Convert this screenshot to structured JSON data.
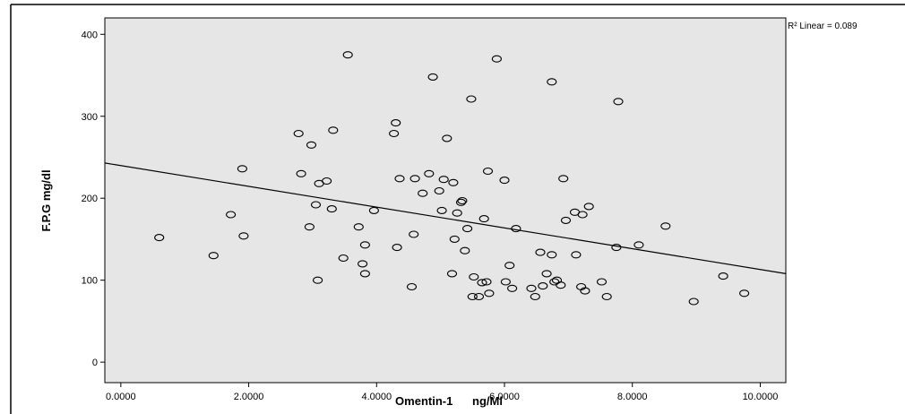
{
  "chart_data": {
    "type": "scatter",
    "xlabel": "Omentin-1      ng/Ml",
    "ylabel": "F.P.G mg/dl",
    "xlim": [
      -0.25,
      10.4
    ],
    "ylim": [
      -25,
      420
    ],
    "x_ticks": [
      "0.0000",
      "2.0000",
      "4.0000",
      "6.0000",
      "8.0000",
      "10.0000"
    ],
    "y_ticks": [
      "0",
      "100",
      "200",
      "300",
      "400"
    ],
    "x_tick_values": [
      0,
      2,
      4,
      6,
      8,
      10
    ],
    "y_tick_values": [
      0,
      100,
      200,
      300,
      400
    ],
    "annotation": "R² Linear = 0.089",
    "fit_line": {
      "x": [
        -0.25,
        10.4
      ],
      "y": [
        243,
        108
      ]
    },
    "background": "#e6e6e6",
    "grid": false,
    "points": [
      [
        0.6,
        152
      ],
      [
        1.45,
        130
      ],
      [
        1.72,
        180
      ],
      [
        1.9,
        236
      ],
      [
        1.92,
        154
      ],
      [
        2.78,
        279
      ],
      [
        2.82,
        230
      ],
      [
        2.95,
        165
      ],
      [
        2.98,
        265
      ],
      [
        3.05,
        192
      ],
      [
        3.08,
        100
      ],
      [
        3.1,
        218
      ],
      [
        3.22,
        221
      ],
      [
        3.3,
        187
      ],
      [
        3.32,
        283
      ],
      [
        3.55,
        375
      ],
      [
        3.48,
        127
      ],
      [
        3.72,
        165
      ],
      [
        3.78,
        120
      ],
      [
        3.82,
        108
      ],
      [
        3.82,
        143
      ],
      [
        3.96,
        185
      ],
      [
        4.27,
        279
      ],
      [
        4.3,
        292
      ],
      [
        4.32,
        140
      ],
      [
        4.36,
        224
      ],
      [
        4.55,
        92
      ],
      [
        4.58,
        156
      ],
      [
        4.6,
        224
      ],
      [
        4.72,
        206
      ],
      [
        4.82,
        230
      ],
      [
        4.88,
        348
      ],
      [
        4.98,
        209
      ],
      [
        5.02,
        185
      ],
      [
        5.05,
        223
      ],
      [
        5.1,
        273
      ],
      [
        5.18,
        108
      ],
      [
        5.2,
        219
      ],
      [
        5.22,
        150
      ],
      [
        5.26,
        182
      ],
      [
        5.32,
        195
      ],
      [
        5.34,
        197
      ],
      [
        5.38,
        136
      ],
      [
        5.42,
        163
      ],
      [
        5.48,
        321
      ],
      [
        5.5,
        80
      ],
      [
        5.52,
        104
      ],
      [
        5.6,
        80
      ],
      [
        5.65,
        97
      ],
      [
        5.68,
        175
      ],
      [
        5.72,
        98
      ],
      [
        5.74,
        233
      ],
      [
        5.76,
        84
      ],
      [
        5.88,
        370
      ],
      [
        6.0,
        222
      ],
      [
        6.02,
        98
      ],
      [
        6.08,
        118
      ],
      [
        6.12,
        90
      ],
      [
        6.18,
        163
      ],
      [
        6.42,
        90
      ],
      [
        6.48,
        80
      ],
      [
        6.56,
        134
      ],
      [
        6.6,
        93
      ],
      [
        6.66,
        108
      ],
      [
        6.74,
        131
      ],
      [
        6.78,
        98
      ],
      [
        6.82,
        100
      ],
      [
        6.74,
        342
      ],
      [
        6.88,
        94
      ],
      [
        6.92,
        224
      ],
      [
        6.96,
        173
      ],
      [
        7.1,
        183
      ],
      [
        7.12,
        131
      ],
      [
        7.2,
        92
      ],
      [
        7.22,
        180
      ],
      [
        7.26,
        87
      ],
      [
        7.32,
        190
      ],
      [
        7.52,
        98
      ],
      [
        7.6,
        80
      ],
      [
        7.75,
        140
      ],
      [
        7.78,
        318
      ],
      [
        8.1,
        143
      ],
      [
        8.52,
        166
      ],
      [
        8.96,
        74
      ],
      [
        9.42,
        105
      ],
      [
        9.75,
        84
      ]
    ]
  }
}
